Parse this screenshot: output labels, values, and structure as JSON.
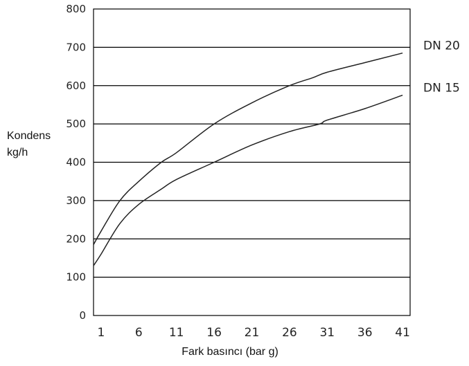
{
  "chart_data": {
    "type": "line",
    "xlabel": "Fark basıncı (bar g)",
    "ylabel_lines": [
      "Kondens",
      "kg/h"
    ],
    "xlim": [
      0,
      42
    ],
    "ylim": [
      0,
      800
    ],
    "x_ticks": [
      1,
      6,
      11,
      16,
      21,
      26,
      31,
      36,
      41
    ],
    "y_ticks": [
      0,
      100,
      200,
      300,
      400,
      500,
      600,
      700,
      800
    ],
    "grid": "horizontal",
    "colors": {
      "line": "#222222",
      "grid": "#000000",
      "text": "#222222"
    },
    "series": [
      {
        "name": "DN 20",
        "x": [
          0,
          1,
          3.5,
          6,
          9,
          11,
          16,
          21,
          26,
          29,
          31,
          36,
          41
        ],
        "y": [
          185,
          220,
          300,
          350,
          400,
          425,
          500,
          555,
          600,
          620,
          635,
          660,
          685
        ]
      },
      {
        "name": "DN 15",
        "x": [
          0,
          1,
          3.5,
          6,
          9,
          11,
          16,
          21,
          26,
          30,
          31,
          36,
          41
        ],
        "y": [
          130,
          160,
          240,
          290,
          330,
          355,
          400,
          445,
          480,
          500,
          510,
          540,
          575
        ]
      }
    ]
  }
}
